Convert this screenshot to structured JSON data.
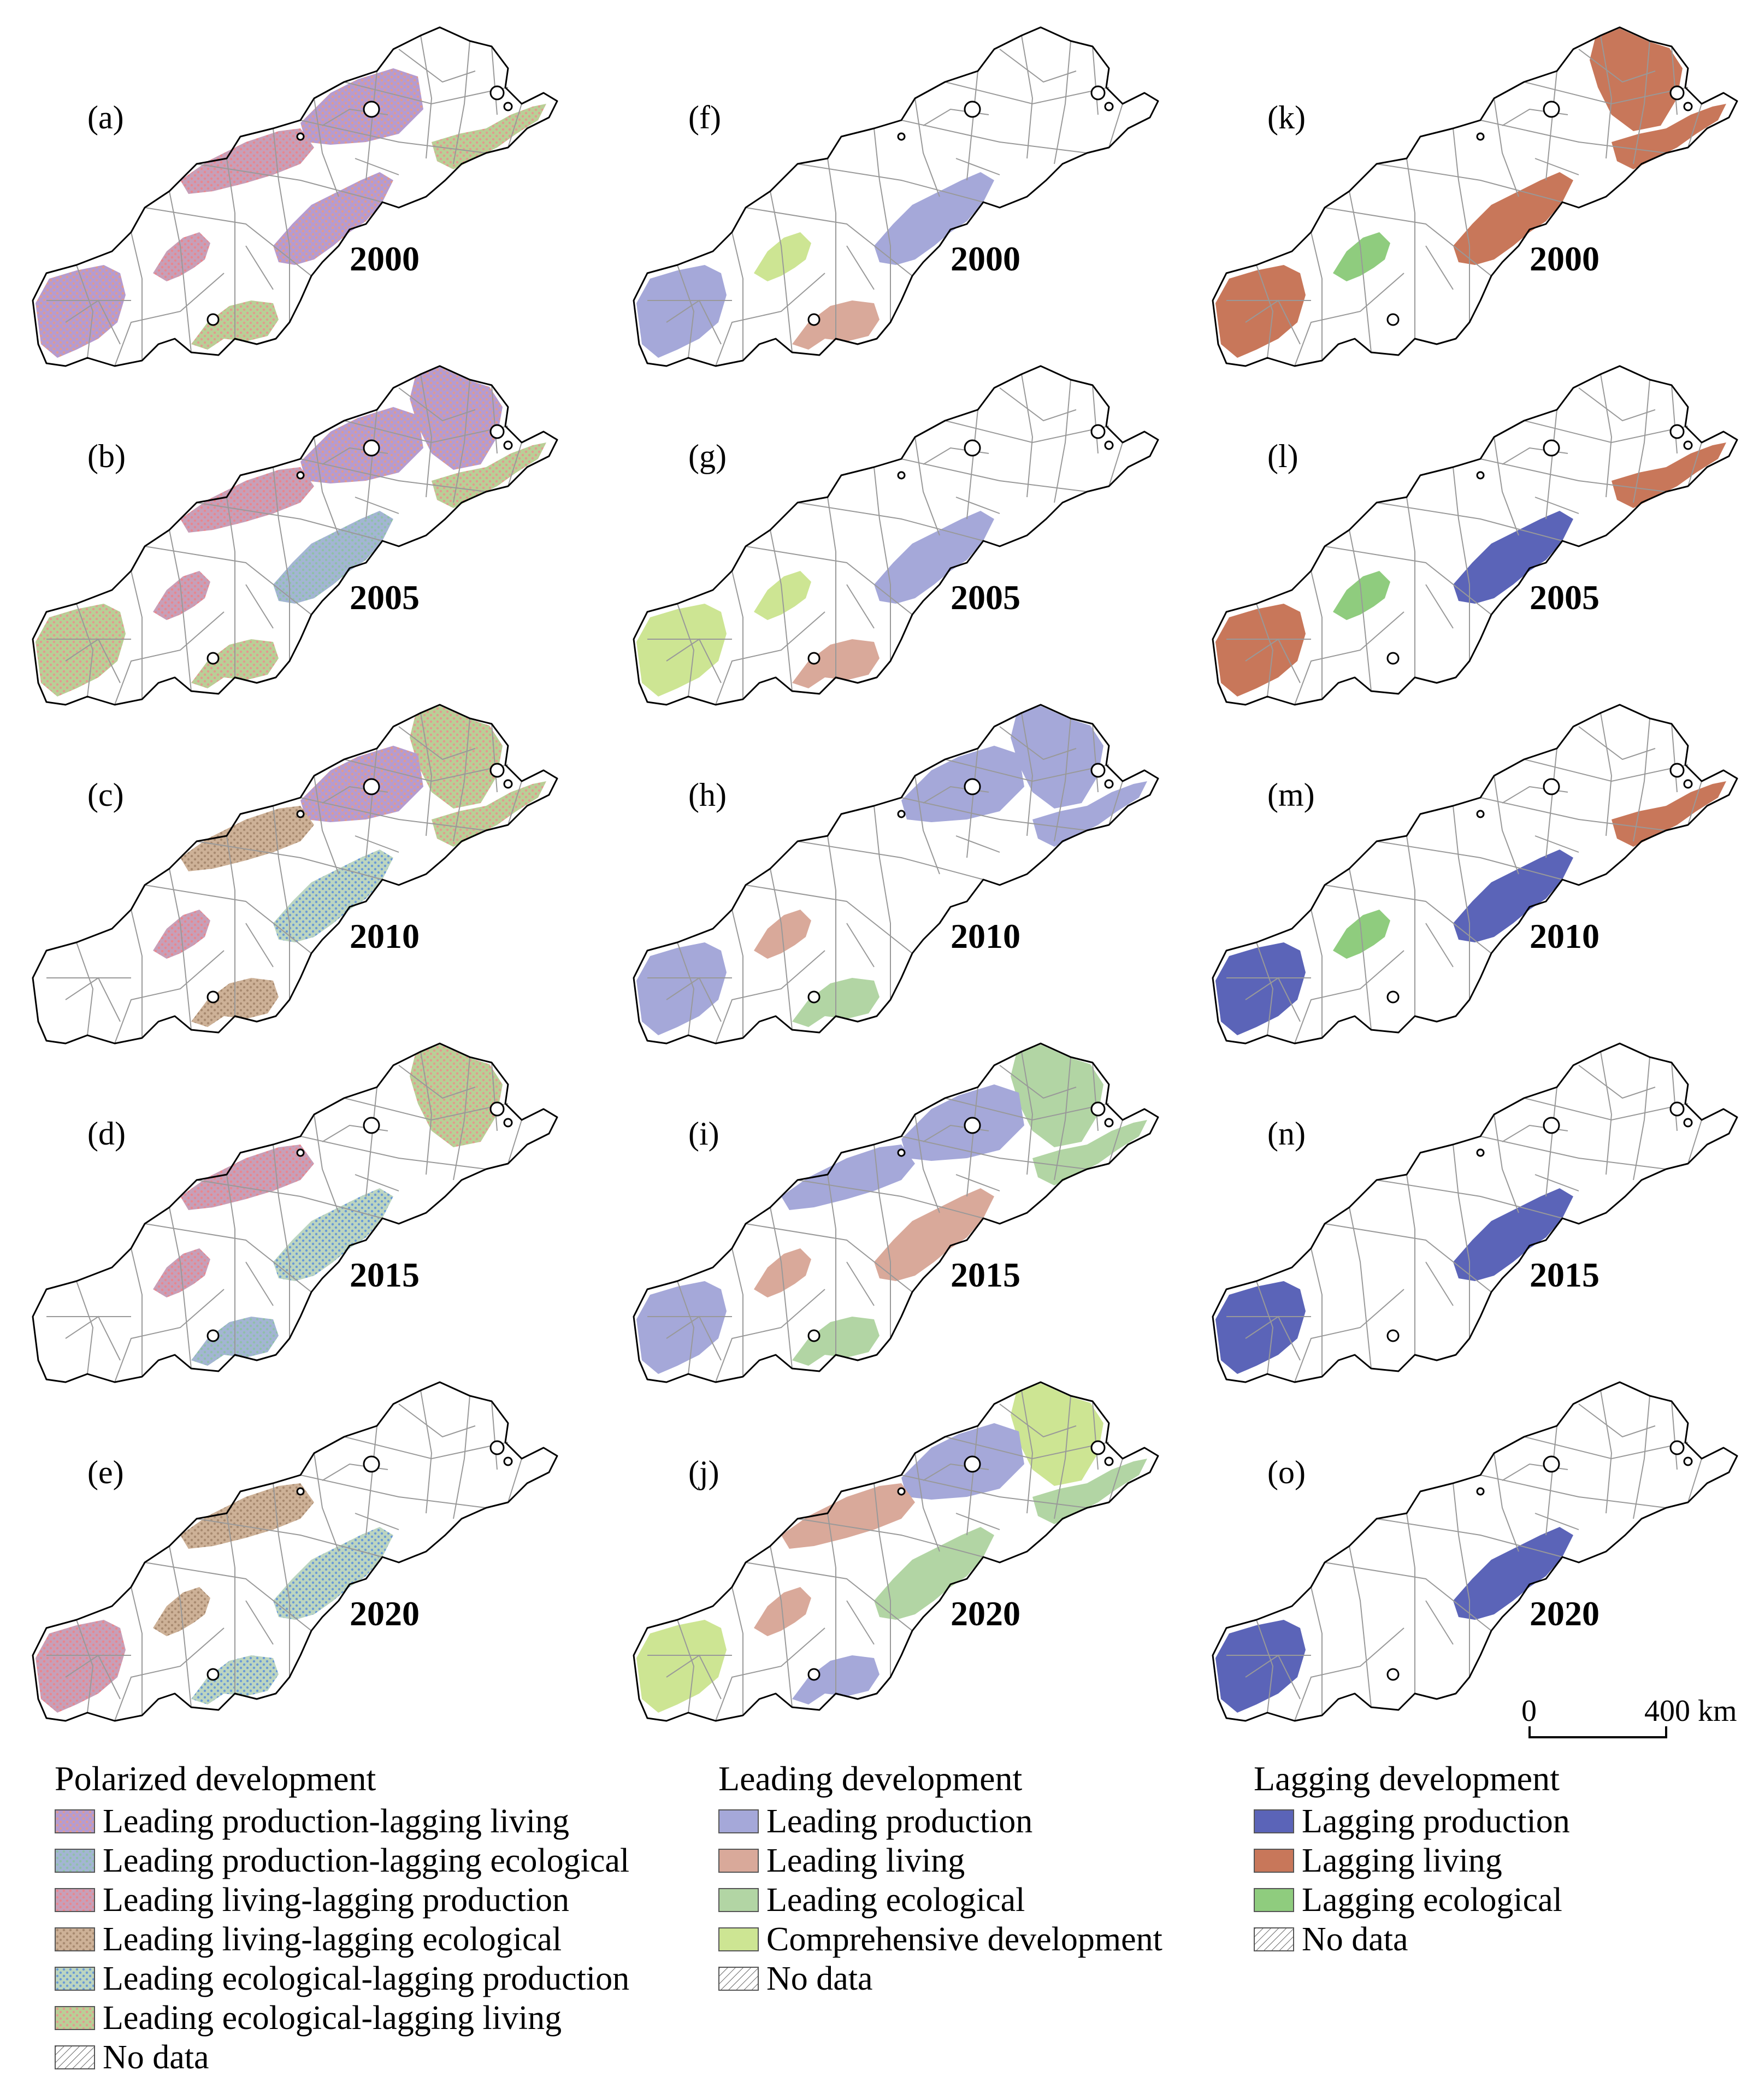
{
  "panels": [
    {
      "id": "a",
      "label": "(a)",
      "year": "2000",
      "group": "polarized",
      "fills": [
        {
          "region": "p1",
          "cls": "pol-ea"
        },
        {
          "region": "p2",
          "cls": "pol-pl"
        },
        {
          "region": "p3",
          "cls": "pol-lp"
        },
        {
          "region": "p4",
          "cls": "pol-el"
        },
        {
          "region": "p5",
          "cls": "pol-pl"
        },
        {
          "region": "p6",
          "cls": "pol-lp"
        },
        {
          "region": "p7",
          "cls": "pol-el"
        },
        {
          "region": "p8",
          "cls": "pol-pl"
        }
      ]
    },
    {
      "id": "b",
      "label": "(b)",
      "year": "2005",
      "group": "polarized",
      "fills": [
        {
          "region": "p1",
          "cls": "pol-pl"
        },
        {
          "region": "p2",
          "cls": "pol-pl"
        },
        {
          "region": "p3",
          "cls": "pol-lp"
        },
        {
          "region": "p4",
          "cls": "pol-el"
        },
        {
          "region": "p5",
          "cls": "pol-pe"
        },
        {
          "region": "p6",
          "cls": "pol-lp"
        },
        {
          "region": "p7",
          "cls": "pol-el"
        },
        {
          "region": "p8",
          "cls": "pol-el"
        }
      ]
    },
    {
      "id": "c",
      "label": "(c)",
      "year": "2010",
      "group": "polarized",
      "fills": [
        {
          "region": "p1",
          "cls": "pol-el"
        },
        {
          "region": "p2",
          "cls": "pol-pl"
        },
        {
          "region": "p3",
          "cls": "pol-le"
        },
        {
          "region": "p4",
          "cls": "pol-el"
        },
        {
          "region": "p5",
          "cls": "pol-ep"
        },
        {
          "region": "p6",
          "cls": "pol-lp"
        },
        {
          "region": "p7",
          "cls": "pol-le"
        }
      ]
    },
    {
      "id": "d",
      "label": "(d)",
      "year": "2015",
      "group": "polarized",
      "fills": [
        {
          "region": "p1",
          "cls": "pol-el"
        },
        {
          "region": "p3",
          "cls": "pol-lp"
        },
        {
          "region": "p5",
          "cls": "pol-ep"
        },
        {
          "region": "p6",
          "cls": "pol-lp"
        },
        {
          "region": "p7",
          "cls": "pol-pe"
        }
      ]
    },
    {
      "id": "e",
      "label": "(e)",
      "year": "2020",
      "group": "polarized",
      "fills": [
        {
          "region": "p3",
          "cls": "pol-le"
        },
        {
          "region": "p5",
          "cls": "pol-ep"
        },
        {
          "region": "p6",
          "cls": "pol-le"
        },
        {
          "region": "p7",
          "cls": "pol-ep"
        },
        {
          "region": "p8",
          "cls": "pol-lp"
        }
      ]
    },
    {
      "id": "f",
      "label": "(f)",
      "year": "2000",
      "group": "leading",
      "fills": [
        {
          "region": "p5",
          "cls": "lead-prod"
        },
        {
          "region": "p6",
          "cls": "lead-comp"
        },
        {
          "region": "p7",
          "cls": "lead-liv"
        },
        {
          "region": "p8",
          "cls": "lead-prod"
        }
      ]
    },
    {
      "id": "g",
      "label": "(g)",
      "year": "2005",
      "group": "leading",
      "fills": [
        {
          "region": "p5",
          "cls": "lead-prod"
        },
        {
          "region": "p6",
          "cls": "lead-comp"
        },
        {
          "region": "p7",
          "cls": "lead-liv"
        },
        {
          "region": "p8",
          "cls": "lead-comp"
        }
      ]
    },
    {
      "id": "h",
      "label": "(h)",
      "year": "2010",
      "group": "leading",
      "fills": [
        {
          "region": "p1",
          "cls": "lead-prod"
        },
        {
          "region": "p2",
          "cls": "lead-prod"
        },
        {
          "region": "p4",
          "cls": "lead-prod"
        },
        {
          "region": "p6",
          "cls": "lead-liv"
        },
        {
          "region": "p7",
          "cls": "lead-eco"
        },
        {
          "region": "p8",
          "cls": "lead-prod"
        }
      ]
    },
    {
      "id": "i",
      "label": "(i)",
      "year": "2015",
      "group": "leading",
      "fills": [
        {
          "region": "p1",
          "cls": "lead-eco"
        },
        {
          "region": "p2",
          "cls": "lead-prod"
        },
        {
          "region": "p3",
          "cls": "lead-prod"
        },
        {
          "region": "p4",
          "cls": "lead-eco"
        },
        {
          "region": "p5",
          "cls": "lead-liv"
        },
        {
          "region": "p6",
          "cls": "lead-liv"
        },
        {
          "region": "p7",
          "cls": "lead-eco"
        },
        {
          "region": "p8",
          "cls": "lead-prod"
        }
      ]
    },
    {
      "id": "j",
      "label": "(j)",
      "year": "2020",
      "group": "leading",
      "fills": [
        {
          "region": "p1",
          "cls": "lead-comp"
        },
        {
          "region": "p2",
          "cls": "lead-prod"
        },
        {
          "region": "p3",
          "cls": "lead-liv"
        },
        {
          "region": "p4",
          "cls": "lead-eco"
        },
        {
          "region": "p5",
          "cls": "lead-eco"
        },
        {
          "region": "p6",
          "cls": "lead-liv"
        },
        {
          "region": "p7",
          "cls": "lead-prod"
        },
        {
          "region": "p8",
          "cls": "lead-comp"
        }
      ]
    },
    {
      "id": "k",
      "label": "(k)",
      "year": "2000",
      "group": "lagging",
      "fills": [
        {
          "region": "p1",
          "cls": "lag-liv"
        },
        {
          "region": "p4",
          "cls": "lag-liv"
        },
        {
          "region": "p5",
          "cls": "lag-liv"
        },
        {
          "region": "p6",
          "cls": "lag-eco"
        },
        {
          "region": "p8",
          "cls": "lag-liv"
        }
      ]
    },
    {
      "id": "l",
      "label": "(l)",
      "year": "2005",
      "group": "lagging",
      "fills": [
        {
          "region": "p4",
          "cls": "lag-liv"
        },
        {
          "region": "p5",
          "cls": "lag-prod"
        },
        {
          "region": "p6",
          "cls": "lag-eco"
        },
        {
          "region": "p8",
          "cls": "lag-liv"
        }
      ]
    },
    {
      "id": "m",
      "label": "(m)",
      "year": "2010",
      "group": "lagging",
      "fills": [
        {
          "region": "p4",
          "cls": "lag-liv"
        },
        {
          "region": "p5",
          "cls": "lag-prod"
        },
        {
          "region": "p6",
          "cls": "lag-eco"
        },
        {
          "region": "p8",
          "cls": "lag-prod"
        }
      ]
    },
    {
      "id": "n",
      "label": "(n)",
      "year": "2015",
      "group": "lagging",
      "fills": [
        {
          "region": "p5",
          "cls": "lag-prod"
        },
        {
          "region": "p8",
          "cls": "lag-prod"
        }
      ]
    },
    {
      "id": "o",
      "label": "(o)",
      "year": "2020",
      "group": "lagging",
      "fills": [
        {
          "region": "p5",
          "cls": "lag-prod"
        },
        {
          "region": "p8",
          "cls": "lag-prod"
        }
      ]
    }
  ],
  "scalebar": {
    "zero": "0",
    "max": "400 km"
  },
  "legend": {
    "polarized": {
      "title": "Polarized development",
      "items": [
        {
          "cls": "pol-pl",
          "label": "Leading production-lagging living"
        },
        {
          "cls": "pol-pe",
          "label": "Leading production-lagging ecological"
        },
        {
          "cls": "pol-lp",
          "label": "Leading living-lagging production"
        },
        {
          "cls": "pol-le",
          "label": "Leading living-lagging ecological"
        },
        {
          "cls": "pol-ep",
          "label": "Leading ecological-lagging production"
        },
        {
          "cls": "pol-el",
          "label": "Leading ecological-lagging living"
        },
        {
          "cls": "nodata",
          "label": "No data"
        }
      ]
    },
    "leading": {
      "title": "Leading development",
      "items": [
        {
          "cls": "lead-prod",
          "label": "Leading production"
        },
        {
          "cls": "lead-liv",
          "label": "Leading living"
        },
        {
          "cls": "lead-eco",
          "label": "Leading ecological"
        },
        {
          "cls": "lead-comp",
          "label": "Comprehensive development"
        },
        {
          "cls": "nodata",
          "label": "No data"
        }
      ]
    },
    "lagging": {
      "title": "Lagging development",
      "items": [
        {
          "cls": "lag-prod",
          "label": "Lagging production"
        },
        {
          "cls": "lag-liv",
          "label": "Lagging living"
        },
        {
          "cls": "lag-eco",
          "label": "Lagging ecological"
        },
        {
          "cls": "nodata",
          "label": "No data"
        }
      ]
    }
  },
  "colors": {
    "lead-prod": "#a5a8d9",
    "lead-liv": "#d9a99a",
    "lead-eco": "#b2d5a4",
    "lead-comp": "#cde593",
    "lag-prod": "#5b64b8",
    "lag-liv": "#c8775a",
    "lag-eco": "#8fcc7e",
    "pol-pl": [
      "#b59bd0",
      "#e09a8e"
    ],
    "pol-pe": [
      "#a3b5d3",
      "#8fc0a8"
    ],
    "pol-lp": [
      "#c79fb8",
      "#e9868e"
    ],
    "pol-le": [
      "#cdb197",
      "#a88a70"
    ],
    "pol-ep": [
      "#bcd5c0",
      "#6a9ad6"
    ],
    "pol-el": [
      "#b9cf96",
      "#e39a8e"
    ],
    "border": "#999999",
    "outline": "#000000"
  }
}
